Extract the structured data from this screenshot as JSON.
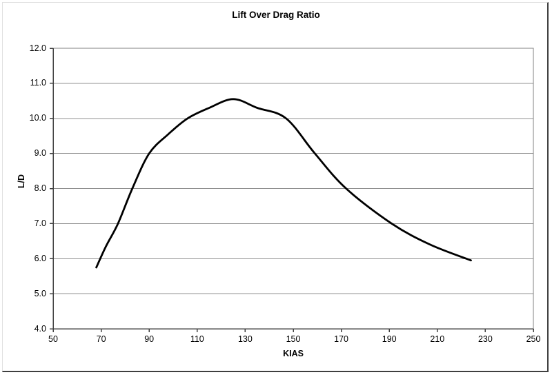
{
  "chart_data": {
    "type": "line",
    "title": "Lift Over Drag Ratio",
    "xlabel": "KIAS",
    "ylabel": "L/D",
    "xlim": [
      50,
      250
    ],
    "ylim": [
      4.0,
      12.0
    ],
    "x_ticks": [
      {
        "value": 50,
        "label": "50"
      },
      {
        "value": 70,
        "label": "70"
      },
      {
        "value": 90,
        "label": "90"
      },
      {
        "value": 110,
        "label": "110"
      },
      {
        "value": 130,
        "label": "130"
      },
      {
        "value": 150,
        "label": "150"
      },
      {
        "value": 170,
        "label": "170"
      },
      {
        "value": 190,
        "label": "190"
      },
      {
        "value": 210,
        "label": "210"
      },
      {
        "value": 230,
        "label": "230"
      },
      {
        "value": 250,
        "label": "250"
      }
    ],
    "y_ticks": [
      {
        "value": 4.0,
        "label": "4.0"
      },
      {
        "value": 5.0,
        "label": "5.0"
      },
      {
        "value": 6.0,
        "label": "6.0"
      },
      {
        "value": 7.0,
        "label": "7.0"
      },
      {
        "value": 8.0,
        "label": "8.0"
      },
      {
        "value": 9.0,
        "label": "9.0"
      },
      {
        "value": 10.0,
        "label": "10.0"
      },
      {
        "value": 11.0,
        "label": "11.0"
      },
      {
        "value": 12.0,
        "label": "12.0"
      }
    ],
    "grid": "horizontal",
    "legend": "none",
    "series": [
      {
        "name": "L/D",
        "color": "#000000",
        "points": [
          [
            68,
            5.75
          ],
          [
            72,
            6.35
          ],
          [
            77,
            7.0
          ],
          [
            83,
            8.0
          ],
          [
            90,
            9.0
          ],
          [
            98,
            9.55
          ],
          [
            106,
            10.0
          ],
          [
            115,
            10.3
          ],
          [
            125,
            10.55
          ],
          [
            135,
            10.3
          ],
          [
            147,
            10.0
          ],
          [
            159,
            9.0
          ],
          [
            172,
            8.0
          ],
          [
            191,
            7.0
          ],
          [
            207,
            6.4
          ],
          [
            224,
            5.95
          ]
        ]
      }
    ],
    "colors": {
      "curve": "#000000",
      "gridline": "#909090",
      "plot_border": "#808080",
      "axis": "#404040",
      "background": "#ffffff"
    }
  }
}
